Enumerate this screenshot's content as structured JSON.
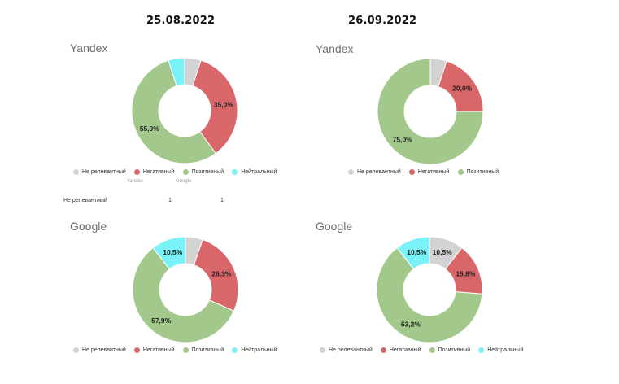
{
  "dates": {
    "left": "25.08.2022",
    "right": "26.09.2022"
  },
  "legend_colors": {
    "Не релевантный": "#d3d3d3",
    "Негативный": "#d9676a",
    "Позитивный": "#a2c98b",
    "Нейтральный": "#79f2f8"
  },
  "stray_table": {
    "faint_header_1": "Yandex",
    "faint_header_2": "Google",
    "row_label": "Не релевантный",
    "value_1": "1",
    "value_2": "1"
  },
  "chart_data": [
    {
      "type": "pie",
      "title": "Yandex",
      "date": "25.08.2022",
      "hole": true,
      "slices": [
        {
          "label": "Не релевантный",
          "value": 5.0,
          "color": "#d3d3d3",
          "data_label": ""
        },
        {
          "label": "Негативный",
          "value": 35.0,
          "color": "#d9676a",
          "data_label": "35,0%"
        },
        {
          "label": "Позитивный",
          "value": 55.0,
          "color": "#a2c98b",
          "data_label": "55,0%"
        },
        {
          "label": "Нейтральный",
          "value": 5.0,
          "color": "#79f2f8",
          "data_label": ""
        }
      ],
      "legend": [
        "Не релевантный",
        "Негативный",
        "Позитивный",
        "Нейтральный"
      ]
    },
    {
      "type": "pie",
      "title": "Yandex",
      "date": "26.09.2022",
      "hole": true,
      "slices": [
        {
          "label": "Не релевантный",
          "value": 5.0,
          "color": "#d3d3d3",
          "data_label": ""
        },
        {
          "label": "Негативный",
          "value": 20.0,
          "color": "#d9676a",
          "data_label": "20,0%"
        },
        {
          "label": "Позитивный",
          "value": 75.0,
          "color": "#a2c98b",
          "data_label": "75,0%"
        }
      ],
      "legend": [
        "Не релевантный",
        "Негативный",
        "Позитивный"
      ]
    },
    {
      "type": "pie",
      "title": "Google",
      "date": "25.08.2022",
      "hole": true,
      "slices": [
        {
          "label": "Не релевантный",
          "value": 5.3,
          "color": "#d3d3d3",
          "data_label": ""
        },
        {
          "label": "Негативный",
          "value": 26.3,
          "color": "#d9676a",
          "data_label": "26,3%"
        },
        {
          "label": "Позитивный",
          "value": 57.9,
          "color": "#a2c98b",
          "data_label": "57,9%"
        },
        {
          "label": "Нейтральный",
          "value": 10.5,
          "color": "#79f2f8",
          "data_label": "10,5%"
        }
      ],
      "legend": [
        "Не релевантный",
        "Негативный",
        "Позитивный",
        "Нейтральный"
      ]
    },
    {
      "type": "pie",
      "title": "Google",
      "date": "26.09.2022",
      "hole": true,
      "slices": [
        {
          "label": "Не релевантный",
          "value": 10.5,
          "color": "#d3d3d3",
          "data_label": "10,5%"
        },
        {
          "label": "Негативный",
          "value": 15.8,
          "color": "#d9676a",
          "data_label": "15,8%"
        },
        {
          "label": "Позитивный",
          "value": 63.2,
          "color": "#a2c98b",
          "data_label": "63,2%"
        },
        {
          "label": "Нейтральный",
          "value": 10.5,
          "color": "#79f2f8",
          "data_label": "10,5%"
        }
      ],
      "legend": [
        "Не релевантный",
        "Негативный",
        "Позитивный",
        "Нейтральный"
      ]
    }
  ]
}
